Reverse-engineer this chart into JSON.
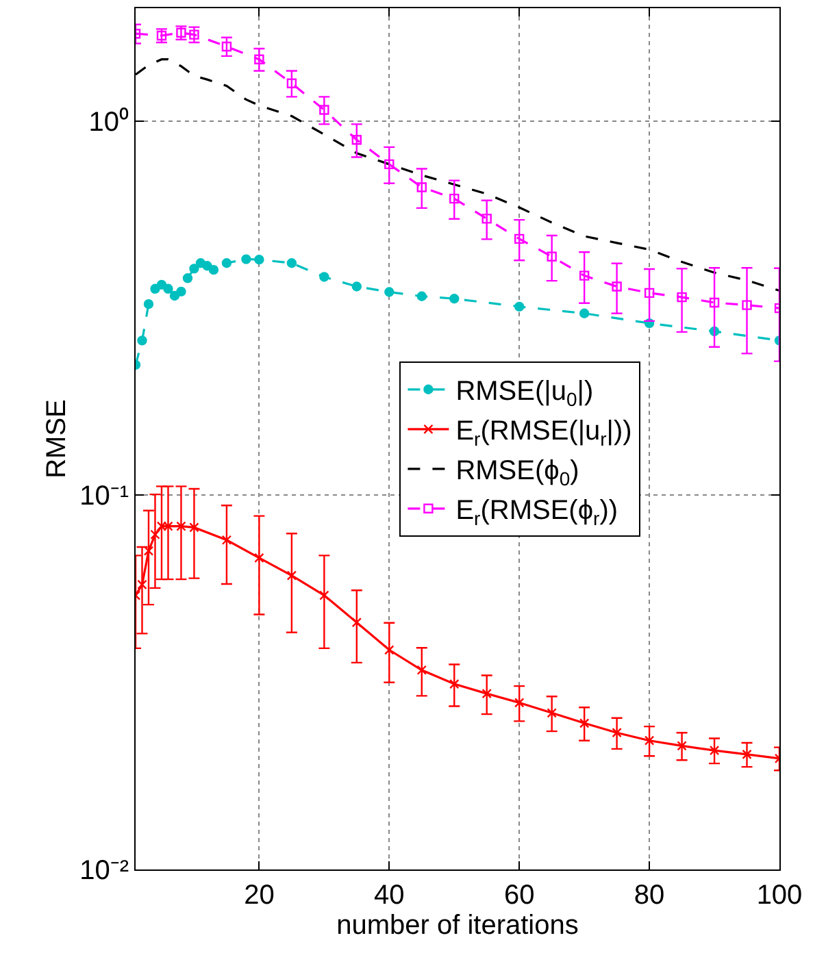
{
  "chart_data": {
    "type": "line",
    "xlabel": "number of iterations",
    "ylabel": "RMSE",
    "log": "y",
    "grid": true,
    "legend": "right",
    "xlim": [
      1,
      100
    ],
    "xticks": [
      20,
      40,
      60,
      80,
      100
    ],
    "ylim": [
      0.01,
      2
    ],
    "yticks": [
      {
        "value": 0.01,
        "label": "10⁻²"
      },
      {
        "value": 0.1,
        "label": "10⁻¹"
      },
      {
        "value": 1,
        "label": "10⁰"
      }
    ],
    "series": [
      {
        "name": "RMSE(|u$_{0}$|)",
        "color": "#00bfbf",
        "marker": "circle",
        "line_style": "dashed",
        "x": [
          1,
          2,
          3,
          4,
          5,
          6,
          7,
          8,
          9,
          10,
          11,
          12,
          13,
          15,
          18,
          20,
          25,
          30,
          35,
          40,
          45,
          50,
          60,
          70,
          80,
          90,
          100
        ],
        "values": [
          0.223,
          0.259,
          0.324,
          0.356,
          0.365,
          0.356,
          0.341,
          0.35,
          0.38,
          0.403,
          0.417,
          0.41,
          0.4,
          0.417,
          0.427,
          0.426,
          0.417,
          0.383,
          0.361,
          0.349,
          0.34,
          0.335,
          0.319,
          0.306,
          0.288,
          0.274,
          0.259
        ]
      },
      {
        "name": "E$_{r}$(RMSE(|u$_{r}$|))",
        "color": "#ff0000",
        "marker": "cross",
        "line_style": "solid",
        "x": [
          1,
          2,
          3,
          4,
          5,
          6,
          8,
          10,
          15,
          20,
          25,
          30,
          35,
          40,
          45,
          50,
          55,
          60,
          65,
          70,
          75,
          80,
          85,
          90,
          95,
          100
        ],
        "values": [
          0.054,
          0.0577,
          0.071,
          0.0785,
          0.0826,
          0.0826,
          0.0826,
          0.082,
          0.0759,
          0.068,
          0.061,
          0.054,
          0.0457,
          0.0386,
          0.0341,
          0.0313,
          0.0295,
          0.0279,
          0.0262,
          0.0246,
          0.0232,
          0.0221,
          0.0214,
          0.0208,
          0.0203,
          0.0198
        ],
        "errors": [
          0.015,
          0.015,
          0.02,
          0.022,
          0.023,
          0.023,
          0.023,
          0.022,
          0.018,
          0.02,
          0.018,
          0.015,
          0.01,
          0.007,
          0.005,
          0.004,
          0.0035,
          0.003,
          0.0028,
          0.0025,
          0.0022,
          0.002,
          0.0018,
          0.0016,
          0.0015,
          0.0014
        ]
      },
      {
        "name": "RMSE(ϕ$_{0}$)",
        "color": "#000000",
        "marker": "none",
        "line_style": "dashed",
        "x": [
          1,
          3,
          5,
          6,
          8,
          10,
          12,
          15,
          18,
          20,
          25,
          30,
          35,
          40,
          45,
          50,
          55,
          60,
          65,
          70,
          75,
          80,
          85,
          90,
          95,
          100
        ],
        "values": [
          1.33,
          1.41,
          1.46,
          1.46,
          1.4,
          1.32,
          1.29,
          1.24,
          1.14,
          1.1,
          1.03,
          0.92,
          0.82,
          0.766,
          0.716,
          0.676,
          0.638,
          0.587,
          0.535,
          0.492,
          0.472,
          0.453,
          0.42,
          0.393,
          0.375,
          0.352
        ]
      },
      {
        "name": "E$_{r}$(RMSE(ϕ$_{r}$))",
        "color": "#ff00ff",
        "marker": "square",
        "line_style": "dashed",
        "x": [
          1,
          5,
          8,
          10,
          15,
          20,
          25,
          30,
          35,
          40,
          45,
          50,
          55,
          60,
          65,
          70,
          75,
          80,
          85,
          90,
          95,
          100
        ],
        "values": [
          1.71,
          1.69,
          1.72,
          1.7,
          1.58,
          1.46,
          1.26,
          1.07,
          0.89,
          0.766,
          0.665,
          0.62,
          0.548,
          0.484,
          0.434,
          0.386,
          0.361,
          0.347,
          0.338,
          0.327,
          0.322,
          0.316
        ],
        "errors": [
          0.1,
          0.07,
          0.07,
          0.08,
          0.09,
          0.1,
          0.1,
          0.09,
          0.09,
          0.085,
          0.08,
          0.073,
          0.065,
          0.06,
          0.06,
          0.06,
          0.055,
          0.055,
          0.065,
          0.078,
          0.083,
          0.088
        ]
      }
    ]
  }
}
